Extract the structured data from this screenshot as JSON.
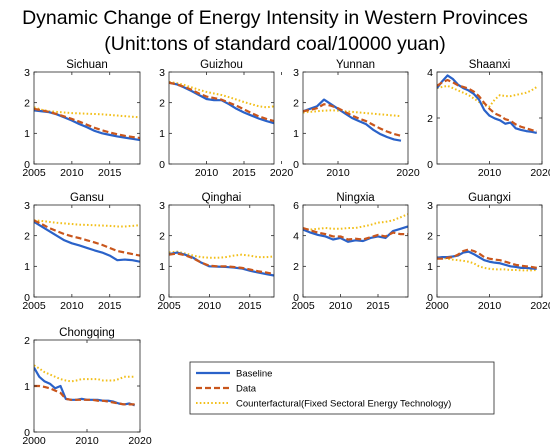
{
  "title_line1": "Dynamic Change of Energy Intensity in Western Provinces",
  "title_line2": "(Unit:tons of standard coal/10000 yuan)",
  "colors": {
    "Baseline": "#2a62c9",
    "Data": "#c9561c",
    "Counterfactual": "#f2bf1a"
  },
  "legend": {
    "placement": "bottom-right",
    "entries": [
      {
        "key": "Baseline",
        "label": "Baseline"
      },
      {
        "key": "Data",
        "label": "Data"
      },
      {
        "key": "Counterfactual",
        "label": "Counterfactural(Fixed Sectoral Energy Technology)"
      }
    ]
  },
  "chart_data": [
    {
      "type": "line",
      "title": "Sichuan",
      "xlim": [
        2005,
        2019
      ],
      "ylim": [
        0,
        3
      ],
      "xticks": [
        "2005",
        "2010",
        "2015"
      ],
      "yticks": [
        "0",
        "1",
        "2",
        "3"
      ],
      "x": [
        2005,
        2006,
        2007,
        2008,
        2009,
        2010,
        2011,
        2012,
        2013,
        2014,
        2015,
        2016,
        2017,
        2018,
        2019
      ],
      "series": [
        {
          "name": "Baseline",
          "values": [
            1.75,
            1.72,
            1.69,
            1.62,
            1.52,
            1.42,
            1.3,
            1.2,
            1.08,
            1.0,
            0.95,
            0.9,
            0.86,
            0.82,
            0.78
          ]
        },
        {
          "name": "Data",
          "values": [
            1.8,
            1.75,
            1.7,
            1.63,
            1.55,
            1.47,
            1.38,
            1.28,
            1.18,
            1.1,
            1.03,
            0.97,
            0.92,
            0.88,
            0.85
          ]
        },
        {
          "name": "Counterfactural(Fixed Sectoral Energy Technology)",
          "values": [
            1.85,
            1.77,
            1.72,
            1.7,
            1.68,
            1.66,
            1.65,
            1.64,
            1.63,
            1.62,
            1.6,
            1.58,
            1.56,
            1.54,
            1.52
          ]
        }
      ]
    },
    {
      "type": "line",
      "title": "Guizhou",
      "xlim": [
        2005,
        2019
      ],
      "ylim": [
        0,
        3
      ],
      "xticks": [
        "2010",
        "2015",
        "2020"
      ],
      "yticks": [
        "0",
        "1",
        "2",
        "3"
      ],
      "x": [
        2005,
        2006,
        2007,
        2008,
        2009,
        2010,
        2011,
        2012,
        2013,
        2014,
        2015,
        2016,
        2017,
        2018,
        2019
      ],
      "series": [
        {
          "name": "Baseline",
          "values": [
            2.65,
            2.6,
            2.5,
            2.38,
            2.25,
            2.12,
            2.08,
            2.08,
            1.95,
            1.8,
            1.68,
            1.58,
            1.48,
            1.4,
            1.33
          ]
        },
        {
          "name": "Data",
          "values": [
            2.65,
            2.6,
            2.52,
            2.42,
            2.3,
            2.2,
            2.15,
            2.1,
            2.0,
            1.9,
            1.78,
            1.66,
            1.55,
            1.47,
            1.4
          ]
        },
        {
          "name": "Counterfactural(Fixed Sectoral Energy Technology)",
          "values": [
            2.68,
            2.64,
            2.58,
            2.5,
            2.42,
            2.35,
            2.3,
            2.25,
            2.18,
            2.1,
            2.02,
            1.95,
            1.88,
            1.85,
            1.88
          ]
        }
      ]
    },
    {
      "type": "line",
      "title": "Yunnan",
      "xlim": [
        2005,
        2020
      ],
      "ylim": [
        0,
        3
      ],
      "xticks": [
        "2010",
        "2020"
      ],
      "yticks": [
        "0",
        "1",
        "2",
        "3"
      ],
      "x": [
        2005,
        2006,
        2007,
        2008,
        2009,
        2010,
        2011,
        2012,
        2013,
        2014,
        2015,
        2016,
        2017,
        2018,
        2019
      ],
      "series": [
        {
          "name": "Baseline",
          "values": [
            1.72,
            1.8,
            1.88,
            2.1,
            1.95,
            1.8,
            1.65,
            1.5,
            1.4,
            1.3,
            1.12,
            0.98,
            0.88,
            0.8,
            0.76
          ]
        },
        {
          "name": "Data",
          "values": [
            1.72,
            1.76,
            1.82,
            1.95,
            1.9,
            1.82,
            1.7,
            1.58,
            1.48,
            1.4,
            1.28,
            1.16,
            1.06,
            0.98,
            0.92
          ]
        },
        {
          "name": "Counterfactural(Fixed Sectoral Energy Technology)",
          "values": [
            1.68,
            1.7,
            1.72,
            1.74,
            1.75,
            1.74,
            1.72,
            1.7,
            1.68,
            1.66,
            1.64,
            1.62,
            1.6,
            1.58,
            1.56
          ]
        }
      ]
    },
    {
      "type": "line",
      "title": "Shaanxi",
      "xlim": [
        2000,
        2020
      ],
      "ylim": [
        0,
        4
      ],
      "xticks": [
        "2010",
        "2020"
      ],
      "yticks": [
        "0",
        "2",
        "4"
      ],
      "x": [
        2000,
        2001,
        2002,
        2003,
        2004,
        2005,
        2006,
        2007,
        2008,
        2009,
        2010,
        2011,
        2012,
        2013,
        2014,
        2015,
        2016,
        2017,
        2018,
        2019
      ],
      "series": [
        {
          "name": "Baseline",
          "values": [
            3.3,
            3.6,
            3.85,
            3.7,
            3.45,
            3.3,
            3.2,
            3.05,
            2.8,
            2.35,
            2.1,
            1.98,
            1.9,
            1.75,
            1.8,
            1.55,
            1.48,
            1.43,
            1.4,
            1.35
          ]
        },
        {
          "name": "Data",
          "values": [
            3.4,
            3.55,
            3.65,
            3.55,
            3.42,
            3.35,
            3.28,
            3.15,
            2.95,
            2.65,
            2.4,
            2.2,
            2.1,
            1.95,
            1.88,
            1.72,
            1.62,
            1.55,
            1.48,
            1.42
          ]
        },
        {
          "name": "Counterfactural(Fixed Sectoral Energy Technology)",
          "values": [
            3.3,
            3.35,
            3.4,
            3.3,
            3.2,
            3.1,
            3.0,
            2.85,
            2.7,
            2.55,
            2.5,
            2.8,
            3.0,
            2.95,
            2.95,
            3.0,
            3.05,
            3.1,
            3.2,
            3.35
          ]
        }
      ]
    },
    {
      "type": "line",
      "title": "Gansu",
      "xlim": [
        2005,
        2019
      ],
      "ylim": [
        0,
        3
      ],
      "xticks": [
        "2005",
        "2010",
        "2015"
      ],
      "yticks": [
        "0",
        "1",
        "2",
        "3"
      ],
      "x": [
        2005,
        2006,
        2007,
        2008,
        2009,
        2010,
        2011,
        2012,
        2013,
        2014,
        2015,
        2016,
        2017,
        2018,
        2019
      ],
      "series": [
        {
          "name": "Baseline",
          "values": [
            2.45,
            2.3,
            2.15,
            2.0,
            1.85,
            1.75,
            1.68,
            1.6,
            1.52,
            1.45,
            1.35,
            1.2,
            1.22,
            1.2,
            1.15
          ]
        },
        {
          "name": "Data",
          "values": [
            2.5,
            2.38,
            2.25,
            2.15,
            2.05,
            1.98,
            1.92,
            1.85,
            1.78,
            1.7,
            1.6,
            1.5,
            1.45,
            1.4,
            1.35
          ]
        },
        {
          "name": "Counterfactural(Fixed Sectoral Energy Technology)",
          "values": [
            2.5,
            2.48,
            2.45,
            2.42,
            2.4,
            2.38,
            2.36,
            2.35,
            2.34,
            2.33,
            2.32,
            2.3,
            2.3,
            2.32,
            2.34
          ]
        }
      ]
    },
    {
      "type": "line",
      "title": "Qinghai",
      "xlim": [
        2005,
        2018
      ],
      "ylim": [
        0,
        3
      ],
      "xticks": [
        "2005",
        "2010",
        "2015"
      ],
      "yticks": [
        "0",
        "1",
        "2",
        "3"
      ],
      "x": [
        2005,
        2006,
        2007,
        2008,
        2009,
        2010,
        2011,
        2012,
        2013,
        2014,
        2015,
        2016,
        2017,
        2018
      ],
      "series": [
        {
          "name": "Baseline",
          "values": [
            1.4,
            1.45,
            1.38,
            1.28,
            1.12,
            1.0,
            0.99,
            0.98,
            0.96,
            0.93,
            0.86,
            0.8,
            0.75,
            0.7
          ]
        },
        {
          "name": "Data",
          "values": [
            1.38,
            1.42,
            1.36,
            1.26,
            1.12,
            1.02,
            1.0,
            1.0,
            0.98,
            0.95,
            0.9,
            0.84,
            0.8,
            0.75
          ]
        },
        {
          "name": "Counterfactural(Fixed Sectoral Energy Technology)",
          "values": [
            1.45,
            1.48,
            1.42,
            1.35,
            1.3,
            1.28,
            1.28,
            1.3,
            1.35,
            1.38,
            1.35,
            1.3,
            1.3,
            1.32
          ]
        }
      ]
    },
    {
      "type": "line",
      "title": "Ningxia",
      "xlim": [
        2005,
        2019
      ],
      "ylim": [
        0,
        6
      ],
      "xticks": [
        "2005",
        "2010",
        "2015"
      ],
      "yticks": [
        "0",
        "2",
        "4",
        "6"
      ],
      "x": [
        2005,
        2006,
        2007,
        2008,
        2009,
        2010,
        2011,
        2012,
        2013,
        2014,
        2015,
        2016,
        2017,
        2018,
        2019
      ],
      "series": [
        {
          "name": "Baseline",
          "values": [
            4.4,
            4.2,
            4.05,
            3.95,
            3.75,
            3.85,
            3.6,
            3.7,
            3.65,
            3.85,
            3.95,
            3.85,
            4.3,
            4.45,
            4.6
          ]
        },
        {
          "name": "Data",
          "values": [
            4.5,
            4.35,
            4.2,
            4.1,
            3.95,
            3.95,
            3.75,
            3.8,
            3.75,
            3.9,
            4.05,
            3.95,
            4.2,
            4.1,
            4.1
          ]
        },
        {
          "name": "Counterfactural(Fixed Sectoral Energy Technology)",
          "values": [
            4.45,
            4.4,
            4.45,
            4.5,
            4.45,
            4.45,
            4.5,
            4.5,
            4.6,
            4.7,
            4.85,
            4.9,
            5.0,
            5.2,
            5.4
          ]
        }
      ]
    },
    {
      "type": "line",
      "title": "Guangxi",
      "xlim": [
        2000,
        2020
      ],
      "ylim": [
        0,
        3
      ],
      "xticks": [
        "2000",
        "2010",
        "2020"
      ],
      "yticks": [
        "0",
        "1",
        "2",
        "3"
      ],
      "x": [
        2000,
        2001,
        2002,
        2003,
        2004,
        2005,
        2006,
        2007,
        2008,
        2009,
        2010,
        2011,
        2012,
        2013,
        2014,
        2015,
        2016,
        2017,
        2018,
        2019
      ],
      "series": [
        {
          "name": "Baseline",
          "values": [
            1.28,
            1.3,
            1.3,
            1.32,
            1.35,
            1.45,
            1.48,
            1.4,
            1.3,
            1.2,
            1.15,
            1.12,
            1.1,
            1.05,
            1.0,
            0.98,
            0.95,
            0.95,
            0.93,
            0.92
          ]
        },
        {
          "name": "Data",
          "values": [
            1.25,
            1.25,
            1.28,
            1.3,
            1.38,
            1.5,
            1.55,
            1.5,
            1.42,
            1.3,
            1.25,
            1.22,
            1.2,
            1.15,
            1.1,
            1.05,
            1.02,
            1.0,
            0.98,
            0.95
          ]
        },
        {
          "name": "Counterfactural(Fixed Sectoral Energy Technology)",
          "values": [
            1.3,
            1.28,
            1.25,
            1.22,
            1.2,
            1.18,
            1.15,
            1.1,
            1.0,
            0.95,
            0.92,
            0.9,
            0.9,
            0.9,
            0.88,
            0.88,
            0.87,
            0.87,
            0.87,
            0.88
          ]
        }
      ]
    },
    {
      "type": "line",
      "title": "Chongqing",
      "xlim": [
        2000,
        2020
      ],
      "ylim": [
        0,
        2
      ],
      "xticks": [
        "2000",
        "2010",
        "2020"
      ],
      "yticks": [
        "0",
        "1",
        "2"
      ],
      "x": [
        2000,
        2001,
        2002,
        2003,
        2004,
        2005,
        2006,
        2007,
        2008,
        2009,
        2010,
        2011,
        2012,
        2013,
        2014,
        2015,
        2016,
        2017,
        2018,
        2019
      ],
      "series": [
        {
          "name": "Baseline",
          "values": [
            1.4,
            1.2,
            1.1,
            1.05,
            0.95,
            1.0,
            0.72,
            0.7,
            0.7,
            0.72,
            0.7,
            0.7,
            0.7,
            0.68,
            0.68,
            0.66,
            0.62,
            0.6,
            0.62,
            0.58
          ]
        },
        {
          "name": "Data",
          "values": [
            1.0,
            1.0,
            0.98,
            0.95,
            0.9,
            0.85,
            0.72,
            0.7,
            0.7,
            0.7,
            0.7,
            0.7,
            0.68,
            0.68,
            0.66,
            0.64,
            0.62,
            0.6,
            0.6,
            0.6
          ]
        },
        {
          "name": "Counterfactural(Fixed Sectoral Energy Technology)",
          "values": [
            1.45,
            1.38,
            1.3,
            1.25,
            1.2,
            1.15,
            1.12,
            1.1,
            1.12,
            1.15,
            1.15,
            1.15,
            1.15,
            1.12,
            1.12,
            1.12,
            1.15,
            1.2,
            1.2,
            1.2
          ]
        }
      ]
    }
  ]
}
